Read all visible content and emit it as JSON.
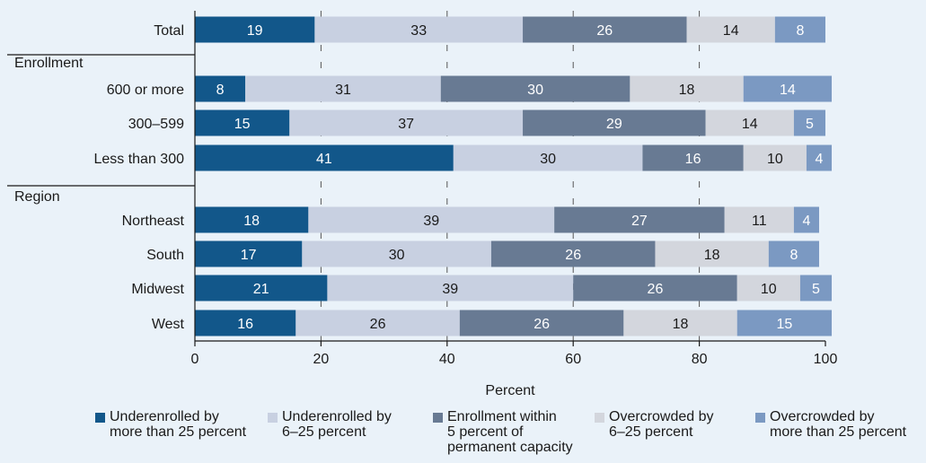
{
  "chart_data": {
    "type": "bar",
    "orientation": "horizontal",
    "stacked": true,
    "xlabel": "Percent",
    "xlim": [
      0,
      100
    ],
    "xticks": [
      "0",
      "20",
      "40",
      "60",
      "80",
      "100"
    ],
    "groups": [
      {
        "label": "",
        "categories": [
          "Total"
        ]
      },
      {
        "label": "Enrollment",
        "categories": [
          "600 or more",
          "300–599",
          "Less than 300"
        ]
      },
      {
        "label": "Region",
        "categories": [
          "Northeast",
          "South",
          "Midwest",
          "West"
        ]
      }
    ],
    "categories": [
      "Total",
      "600 or more",
      "300–599",
      "Less than 300",
      "Northeast",
      "South",
      "Midwest",
      "West"
    ],
    "series": [
      {
        "name": "Underenrolled by more than 25 percent",
        "color": "#12578a",
        "values": [
          19,
          8,
          15,
          41,
          18,
          17,
          21,
          16
        ]
      },
      {
        "name": "Underenrolled by 6–25 percent",
        "color": "#c8d0e1",
        "values": [
          33,
          31,
          37,
          30,
          39,
          30,
          39,
          26
        ]
      },
      {
        "name": "Enrollment within 5 percent of permanent capacity",
        "color": "#687a93",
        "values": [
          26,
          30,
          29,
          16,
          27,
          26,
          26,
          26
        ]
      },
      {
        "name": "Overcrowded by 6–25 percent",
        "color": "#d3d6dd",
        "values": [
          14,
          18,
          14,
          10,
          11,
          18,
          10,
          18
        ]
      },
      {
        "name": "Overcrowded by more than 25 percent",
        "color": "#7b99c2",
        "values": [
          8,
          14,
          5,
          4,
          4,
          8,
          5,
          15
        ]
      }
    ],
    "legend": [
      {
        "text": "Underenrolled by\nmore than 25 percent",
        "color": "#12578a"
      },
      {
        "text": "Underenrolled by\n6–25 percent",
        "color": "#c8d0e1"
      },
      {
        "text": "Enrollment within\n5 percent of\npermanent capacity",
        "color": "#687a93"
      },
      {
        "text": "Overcrowded by\n6–25 percent",
        "color": "#d3d6dd"
      },
      {
        "text": "Overcrowded by\nmore than 25 percent",
        "color": "#7b99c2"
      }
    ],
    "legend_position": "bottom",
    "grid": "dashed vertical gridlines"
  }
}
